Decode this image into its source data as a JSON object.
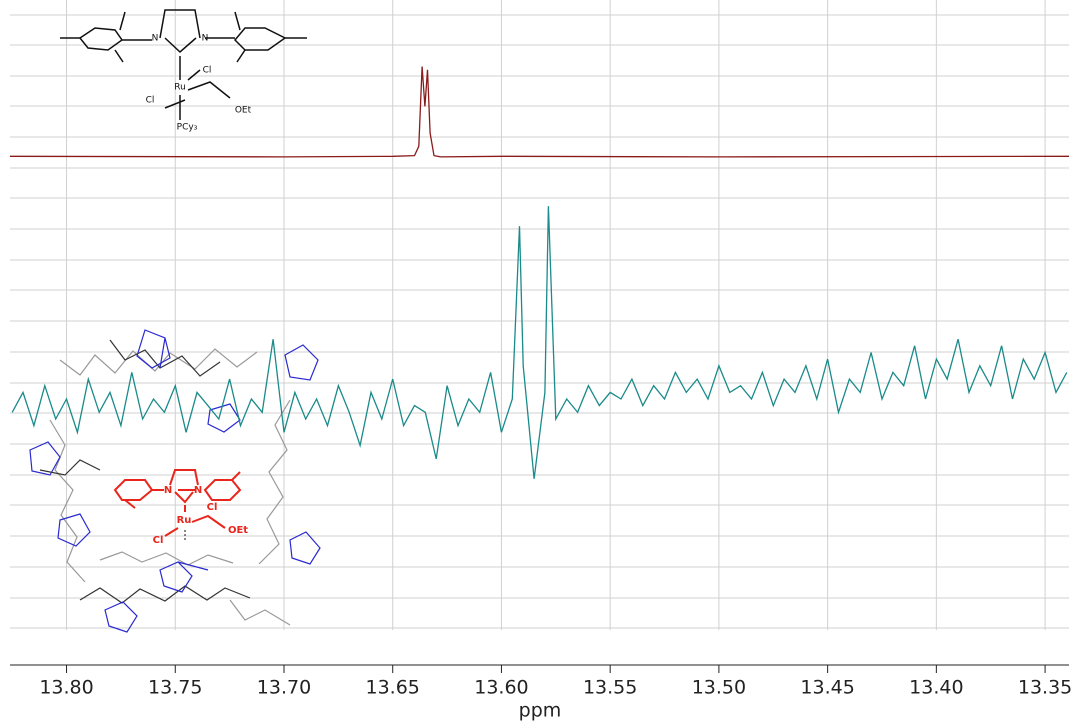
{
  "chart_data": {
    "type": "line",
    "x_label": "ppm",
    "xlim": [
      13.826,
      13.339
    ],
    "xticks": [
      {
        "value": 13.8,
        "label": "13.80"
      },
      {
        "value": 13.75,
        "label": "13.75"
      },
      {
        "value": 13.7,
        "label": "13.70"
      },
      {
        "value": 13.65,
        "label": "13.65"
      },
      {
        "value": 13.6,
        "label": "13.60"
      },
      {
        "value": 13.55,
        "label": "13.55"
      },
      {
        "value": 13.5,
        "label": "13.50"
      },
      {
        "value": 13.45,
        "label": "13.45"
      },
      {
        "value": 13.4,
        "label": "13.40"
      },
      {
        "value": 13.35,
        "label": "13.35"
      }
    ],
    "ylim": [
      0,
      100
    ],
    "grid": true,
    "series": [
      {
        "color": "#8b1a1a",
        "x": [
          13.826,
          13.7,
          13.65,
          13.64,
          13.638,
          13.6365,
          13.6352,
          13.634,
          13.6328,
          13.631,
          13.628,
          13.6,
          13.5,
          13.339
        ],
        "values": [
          76.5,
          76.4,
          76.5,
          76.6,
          78,
          90,
          84,
          89.5,
          80,
          76.6,
          76.4,
          76.5,
          76.4,
          76.5
        ]
      },
      {
        "color": "#1a8a8a",
        "x": [
          13.825,
          13.82,
          13.815,
          13.81,
          13.805,
          13.8,
          13.795,
          13.79,
          13.785,
          13.78,
          13.775,
          13.77,
          13.765,
          13.76,
          13.755,
          13.75,
          13.745,
          13.74,
          13.735,
          13.73,
          13.725,
          13.72,
          13.715,
          13.71,
          13.705,
          13.7,
          13.695,
          13.69,
          13.685,
          13.68,
          13.675,
          13.67,
          13.665,
          13.66,
          13.655,
          13.65,
          13.645,
          13.64,
          13.635,
          13.63,
          13.625,
          13.62,
          13.615,
          13.61,
          13.605,
          13.6,
          13.595,
          13.5917,
          13.59,
          13.585,
          13.58,
          13.5784,
          13.575,
          13.57,
          13.565,
          13.56,
          13.555,
          13.55,
          13.545,
          13.54,
          13.535,
          13.53,
          13.525,
          13.52,
          13.515,
          13.51,
          13.505,
          13.5,
          13.495,
          13.49,
          13.485,
          13.48,
          13.475,
          13.47,
          13.465,
          13.46,
          13.455,
          13.45,
          13.445,
          13.44,
          13.435,
          13.43,
          13.425,
          13.42,
          13.415,
          13.41,
          13.405,
          13.4,
          13.395,
          13.39,
          13.385,
          13.38,
          13.375,
          13.37,
          13.365,
          13.36,
          13.355,
          13.35,
          13.345,
          13.34
        ],
        "values": [
          38,
          41,
          36,
          42,
          37,
          40,
          35,
          43,
          38,
          41,
          36,
          44,
          37,
          40,
          38,
          42,
          35,
          41,
          39,
          37,
          43,
          36,
          40,
          38,
          49,
          35,
          41,
          37,
          40,
          36,
          42,
          38,
          33,
          41,
          37,
          43,
          36,
          39,
          38,
          31,
          42,
          36,
          40,
          38,
          44,
          35,
          40,
          66,
          45,
          28,
          41,
          69,
          37,
          40,
          38,
          42,
          39,
          41,
          40,
          43,
          39,
          42,
          40,
          44,
          41,
          43,
          40,
          45,
          41,
          42,
          40,
          44,
          39,
          43,
          41,
          45,
          40,
          46,
          38,
          43,
          41,
          47,
          40,
          44,
          42,
          48,
          40,
          46,
          43,
          49,
          41,
          45,
          42,
          48,
          40,
          46,
          43,
          47,
          41,
          44
        ]
      }
    ],
    "annotations": [
      "N",
      "N",
      "Ru",
      "Cl",
      "Cl",
      "OEt",
      "PCy₃",
      "N",
      "N",
      "Ru",
      "Cl",
      "Cl",
      "OEt"
    ]
  }
}
